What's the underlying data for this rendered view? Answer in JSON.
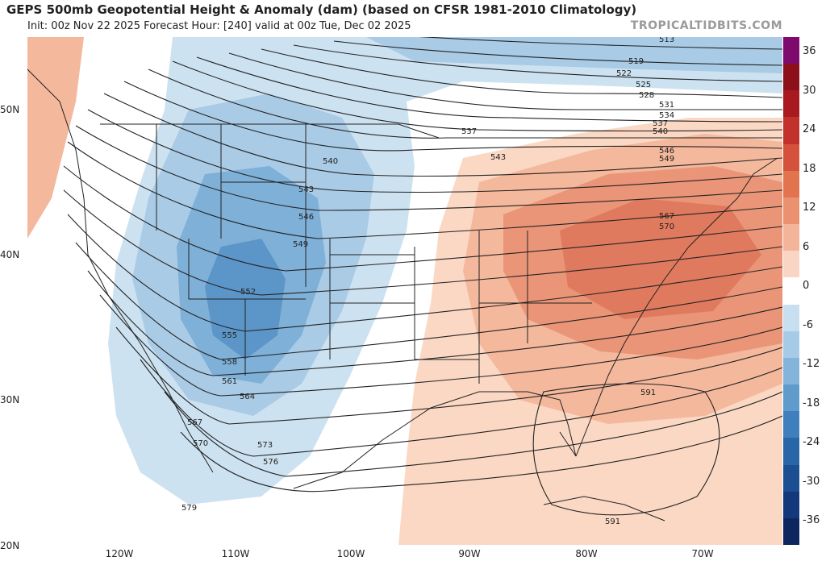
{
  "header": {
    "title": "GEPS 500mb Geopotential Height & Anomaly (dam) (based on CFSR 1981-2010 Climatology)",
    "subtitle": "Init: 00z Nov 22 2025   Forecast Hour: [240]   valid at 00z Tue, Dec 02 2025",
    "credit": "TROPICALTIDBITS.COM"
  },
  "axes": {
    "lat_labels": [
      "50N",
      "40N",
      "30N",
      "20N"
    ],
    "lon_labels": [
      "120W",
      "110W",
      "100W",
      "90W",
      "80W",
      "70W"
    ]
  },
  "colorbar": {
    "labels": [
      "36",
      "30",
      "24",
      "18",
      "12",
      "6",
      "0",
      "-6",
      "-12",
      "-18",
      "-24",
      "-30",
      "-36"
    ],
    "colors": [
      "#7f0a6e",
      "#8c0f1a",
      "#a81a20",
      "#c2312c",
      "#d4523c",
      "#e1744f",
      "#ea9170",
      "#f3b49a",
      "#f9d6c4",
      "#ffffff",
      "#c8dff0",
      "#a6cbe6",
      "#84b4da",
      "#5f9ccc",
      "#3f80bc",
      "#2866a7",
      "#1c4f92",
      "#14397a",
      "#0d2660"
    ]
  },
  "contour_labels": [
    "513",
    "519",
    "522",
    "525",
    "528",
    "531",
    "534",
    "537",
    "540",
    "546",
    "549",
    "537",
    "543",
    "540",
    "543",
    "546",
    "549",
    "552",
    "555",
    "558",
    "561",
    "564",
    "567",
    "570",
    "573",
    "576",
    "579",
    "567",
    "570",
    "591",
    "591"
  ],
  "colors": {
    "cold_light": "#cde2f1",
    "cold_mid": "#a9cbe6",
    "cold_deep": "#7fb0d8",
    "cold_core": "#5c96c8",
    "warm_light": "#fbd8c4",
    "warm_mid": "#f4b89c",
    "warm_deep": "#ea9578",
    "warm_core": "#e07a5f",
    "contour": "#222222",
    "border": "#222222"
  }
}
